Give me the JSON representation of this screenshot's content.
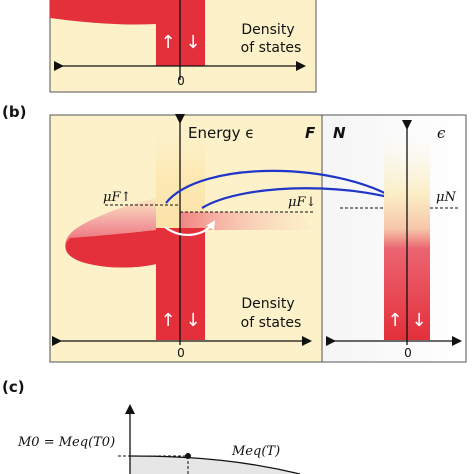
{
  "panel_a": {
    "dos_label_1": "Density",
    "dos_label_2": "of states",
    "spin_up": "↑",
    "spin_down": "↓",
    "zero": "0"
  },
  "panel_b": {
    "tag": "(b)",
    "energy_axis": "Energy ϵ",
    "ferromagnet_label": "F",
    "normal_label": "N",
    "normal_energy": "ϵ",
    "mu_up": "μF↑",
    "mu_down": "μF↓",
    "mu_n": "μN",
    "dos_label_1": "Density",
    "dos_label_2": "of states",
    "spin_up": "↑",
    "spin_down": "↓",
    "zero_f": "0",
    "zero_n": "0"
  },
  "panel_c": {
    "tag": "(c)",
    "m0_label": "M0 = Meq(T0)",
    "meq_label": "Meq(T)"
  },
  "colors": {
    "background_cream": "#fcf1c9",
    "dos_red": "#e3303a",
    "dos_pink": "#f59a9e",
    "arrow_blue": "#1f36c6",
    "panel_border": "#555555"
  }
}
